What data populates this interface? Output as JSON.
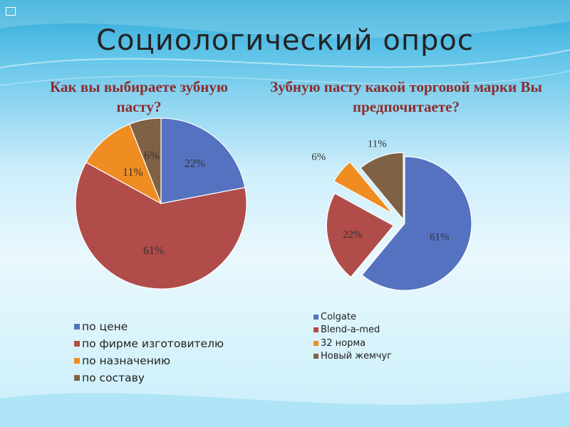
{
  "slide": {
    "title": "Социологический опрос",
    "background_colors": [
      "#2aa9d8",
      "#cdeefb",
      "#e9f8fd"
    ]
  },
  "chart_data": [
    {
      "type": "pie",
      "title": "Как вы выбираете зубную пасту?",
      "legend_position": "bottom",
      "categories": [
        "по цене",
        "по фирме изготовителю",
        "по назначению",
        "по составу"
      ],
      "values": [
        22,
        61,
        11,
        6
      ],
      "data_labels": [
        "22%",
        "61%",
        "11%",
        "6%"
      ],
      "colors": [
        "#5572c0",
        "#b04c49",
        "#ef8d22",
        "#7f6145"
      ],
      "exploded": false
    },
    {
      "type": "pie",
      "title": "Зубную пасту какой торговой марки Вы предпочитаете?",
      "legend_position": "bottom",
      "categories": [
        "Colgate",
        "Blend-a-med",
        "32 норма",
        "Новый жемчуг"
      ],
      "values": [
        61,
        22,
        6,
        11
      ],
      "data_labels": [
        "61%",
        "22%",
        "6%",
        "11%"
      ],
      "colors": [
        "#5572c0",
        "#b04c49",
        "#ef8d22",
        "#7f6145"
      ],
      "exploded": true
    }
  ]
}
